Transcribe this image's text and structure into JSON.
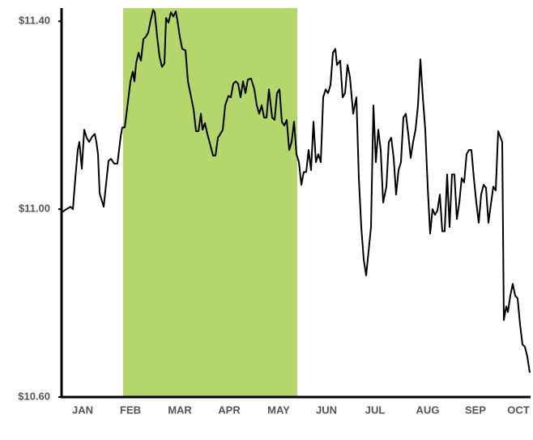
{
  "chart_data": {
    "type": "line",
    "x": [
      0,
      6,
      11,
      14,
      17,
      20,
      22,
      25,
      28,
      31,
      34,
      38,
      41,
      43,
      45,
      47,
      52,
      58,
      61,
      65,
      69,
      73,
      75,
      78,
      82,
      85,
      88,
      90,
      92,
      95,
      98,
      101,
      104,
      107,
      110,
      113,
      115,
      118,
      121,
      124,
      127,
      129,
      132,
      135,
      138,
      141,
      143,
      146,
      149,
      153,
      156,
      160,
      163,
      166,
      169,
      172,
      174,
      177,
      180,
      184,
      187,
      190,
      193,
      196,
      199,
      202,
      206,
      209,
      212,
      215,
      218,
      221,
      224,
      227,
      230,
      234,
      238,
      241,
      244,
      247,
      250,
      253,
      256,
      260,
      263,
      266,
      269,
      272,
      275,
      278,
      281,
      284,
      287,
      290,
      293,
      296,
      299,
      302,
      305,
      308,
      311,
      314,
      317,
      320,
      323,
      326,
      329,
      332,
      335,
      338,
      340,
      344,
      347,
      350,
      353,
      356,
      360,
      364,
      367,
      370,
      373,
      376,
      379,
      382,
      385,
      388,
      391,
      394,
      397,
      401,
      404,
      407,
      410,
      413,
      416,
      419,
      422,
      425,
      428,
      431,
      434,
      437,
      440,
      443,
      446,
      449,
      452,
      455,
      458,
      461,
      464,
      467,
      470,
      473,
      476,
      479,
      482,
      485,
      488,
      491,
      494,
      497,
      500,
      503,
      506,
      509,
      512,
      515,
      518,
      521,
      524,
      527,
      530,
      533,
      536,
      539,
      544,
      546,
      549,
      551,
      554,
      557,
      560,
      563,
      566,
      569,
      572,
      575,
      578
    ],
    "values": [
      10.993,
      11.0,
      11.005,
      11.0,
      11.066,
      11.126,
      11.143,
      11.086,
      11.169,
      11.152,
      11.143,
      11.155,
      11.16,
      11.143,
      11.117,
      11.034,
      11.005,
      11.103,
      11.107,
      11.097,
      11.097,
      11.155,
      11.174,
      11.174,
      11.229,
      11.272,
      11.293,
      11.272,
      11.31,
      11.333,
      11.316,
      11.362,
      11.367,
      11.376,
      11.402,
      11.424,
      11.419,
      11.367,
      11.324,
      11.303,
      11.31,
      11.407,
      11.397,
      11.419,
      11.41,
      11.421,
      11.402,
      11.367,
      11.341,
      11.338,
      11.272,
      11.238,
      11.212,
      11.166,
      11.166,
      11.203,
      11.169,
      11.183,
      11.16,
      11.134,
      11.114,
      11.114,
      11.152,
      11.16,
      11.169,
      11.221,
      11.241,
      11.238,
      11.267,
      11.272,
      11.267,
      11.238,
      11.272,
      11.247,
      11.276,
      11.278,
      11.255,
      11.221,
      11.203,
      11.221,
      11.195,
      11.195,
      11.255,
      11.195,
      11.19,
      11.247,
      11.255,
      11.186,
      11.178,
      11.19,
      11.126,
      11.143,
      11.186,
      11.117,
      11.1,
      11.052,
      11.079,
      11.079,
      11.126,
      11.083,
      11.186,
      11.1,
      11.117,
      11.1,
      11.238,
      11.255,
      11.247,
      11.264,
      11.333,
      11.341,
      11.307,
      11.316,
      11.238,
      11.247,
      11.307,
      11.281,
      11.203,
      11.238,
      11.066,
      10.962,
      10.893,
      10.859,
      10.91,
      10.962,
      11.221,
      11.1,
      11.169,
      11.126,
      11.014,
      11.048,
      11.143,
      11.152,
      11.109,
      11.031,
      11.083,
      11.1,
      11.195,
      11.203,
      11.16,
      11.109,
      11.143,
      11.169,
      11.221,
      11.319,
      11.238,
      11.169,
      11.048,
      10.948,
      11.0,
      10.988,
      10.997,
      11.031,
      10.953,
      10.953,
      11.074,
      10.962,
      11.074,
      11.074,
      10.979,
      11.014,
      11.066,
      11.057,
      11.117,
      11.126,
      11.126,
      11.066,
      11.014,
      10.971,
      11.031,
      11.052,
      11.045,
      10.971,
      11.01,
      11.048,
      11.04,
      11.166,
      11.143,
      10.764,
      10.793,
      10.781,
      10.816,
      10.841,
      10.816,
      10.81,
      10.755,
      10.712,
      10.707,
      10.686,
      10.652
    ],
    "color": "#000000",
    "xlim": [
      0,
      579
    ],
    "xticks": [
      {
        "value": 26,
        "label": "JAN"
      },
      {
        "value": 85,
        "label": "FEB"
      },
      {
        "value": 146,
        "label": "MAR"
      },
      {
        "value": 207,
        "label": "APR"
      },
      {
        "value": 268,
        "label": "MAY"
      },
      {
        "value": 327,
        "label": "JUN"
      },
      {
        "value": 387,
        "label": "JUL"
      },
      {
        "value": 452,
        "label": "AUG"
      },
      {
        "value": 511,
        "label": "SEP"
      },
      {
        "value": 564,
        "label": "OCT"
      }
    ],
    "ylim": [
      10.6,
      11.428
    ],
    "yticks": [
      {
        "value": 10.6,
        "label": "$10.60"
      },
      {
        "value": 11,
        "label": "$11.00"
      },
      {
        "value": 11.4,
        "label": "$11.40"
      }
    ],
    "highlight": {
      "range": [
        76,
        291
      ],
      "color": "#b5d66a"
    }
  }
}
